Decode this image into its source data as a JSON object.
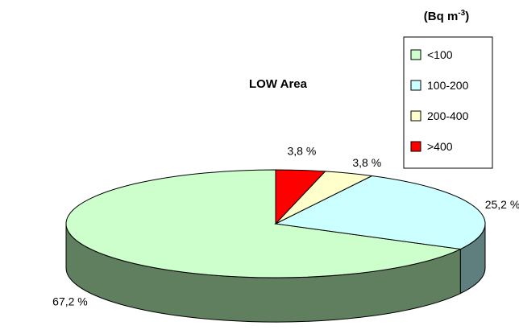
{
  "chart_data": {
    "type": "pie",
    "style": "3d",
    "title": "LOW Area",
    "legend_title": "(Bq m-3)",
    "legend_title_parts": {
      "prefix": "(Bq m",
      "sup": "-3",
      "suffix": ")"
    },
    "legend_position": "top-right",
    "slices": [
      {
        "label": "<100",
        "value": 67.2,
        "display": "67,2 %",
        "color": "#ccffcc",
        "side_color": "#5f7f5f"
      },
      {
        "label": "100-200",
        "value": 25.2,
        "display": "25,2 %",
        "color": "#ccffff",
        "side_color": "#5f7f7f"
      },
      {
        "label": "200-400",
        "value": 3.8,
        "display": "3,8 %",
        "color": "#ffffcc",
        "side_color": "#7f7f5f"
      },
      {
        "label": ">400",
        "value": 3.8,
        "display": "3,8 %",
        "color": "#ff0000",
        "side_color": "#7f0000"
      }
    ]
  }
}
